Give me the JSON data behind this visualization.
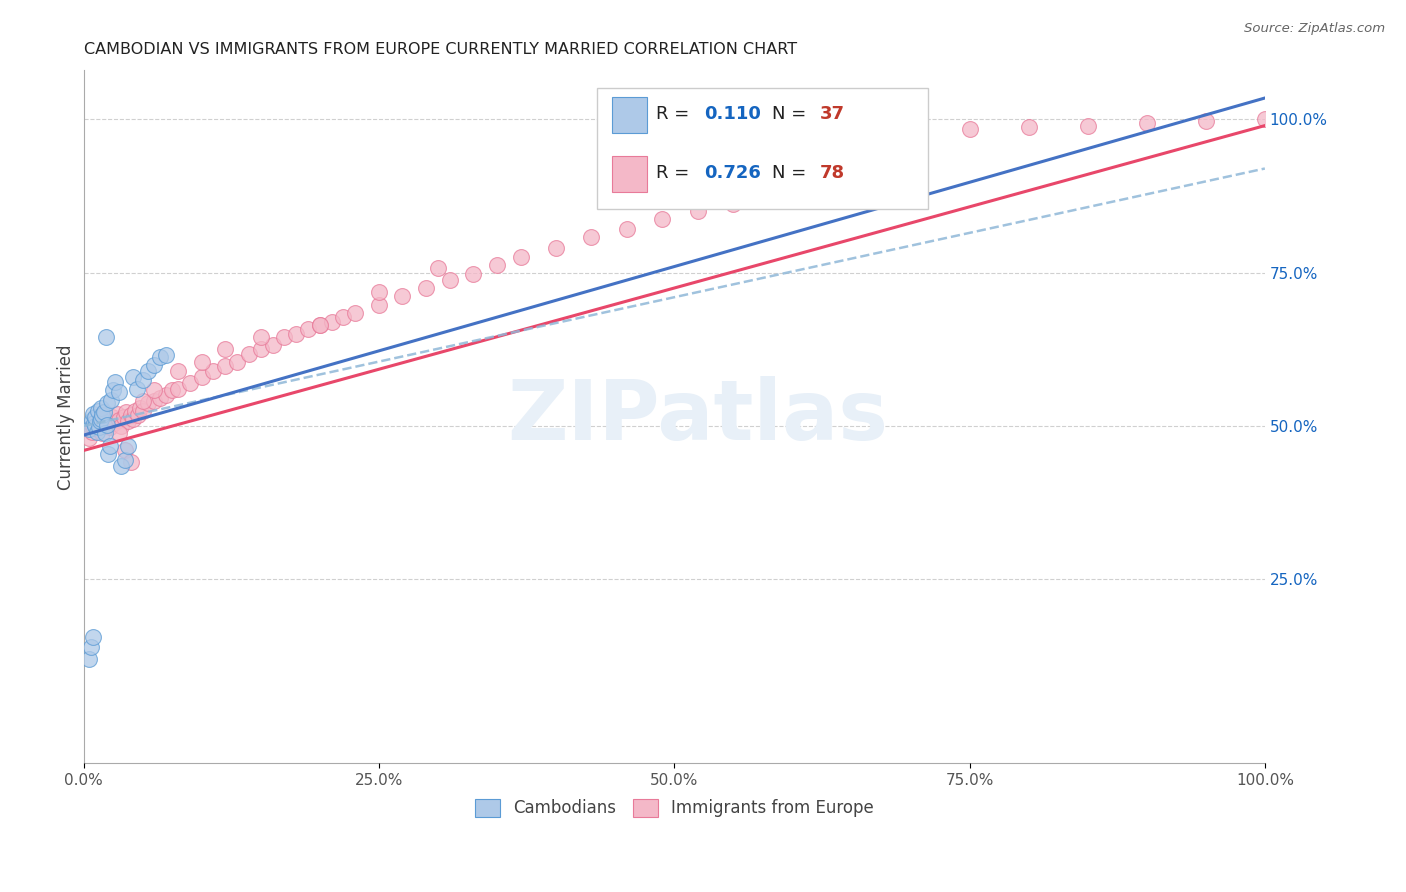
{
  "title": "CAMBODIAN VS IMMIGRANTS FROM EUROPE CURRENTLY MARRIED CORRELATION CHART",
  "source": "Source: ZipAtlas.com",
  "ylabel": "Currently Married",
  "right_yticks": [
    "100.0%",
    "75.0%",
    "50.0%",
    "25.0%"
  ],
  "right_ytick_vals": [
    1.0,
    0.75,
    0.5,
    0.25
  ],
  "legend_label1": "Cambodians",
  "legend_label2": "Immigrants from Europe",
  "watermark": "ZIPatlas",
  "blue_scatter_color": "#aec9e8",
  "blue_edge_color": "#5b9bd5",
  "pink_scatter_color": "#f4b8c8",
  "pink_edge_color": "#e87a99",
  "blue_line_color": "#4472c4",
  "pink_line_color": "#e8476a",
  "r_val_color": "#1565C0",
  "n_val_color": "#c0392b",
  "xlim": [
    0.0,
    1.0
  ],
  "ylim": [
    -0.05,
    1.08
  ],
  "cambodian_x": [
    0.005,
    0.007,
    0.008,
    0.009,
    0.01,
    0.01,
    0.011,
    0.012,
    0.013,
    0.014,
    0.015,
    0.015,
    0.016,
    0.017,
    0.018,
    0.019,
    0.02,
    0.02,
    0.021,
    0.022,
    0.023,
    0.025,
    0.027,
    0.03,
    0.032,
    0.035,
    0.038,
    0.042,
    0.045,
    0.05,
    0.055,
    0.06,
    0.065,
    0.07,
    0.005,
    0.006,
    0.008
  ],
  "cambodian_y": [
    0.495,
    0.51,
    0.52,
    0.505,
    0.5,
    0.515,
    0.49,
    0.525,
    0.498,
    0.508,
    0.512,
    0.53,
    0.518,
    0.522,
    0.488,
    0.645,
    0.502,
    0.538,
    0.455,
    0.468,
    0.542,
    0.558,
    0.572,
    0.555,
    0.435,
    0.445,
    0.468,
    0.58,
    0.56,
    0.575,
    0.59,
    0.6,
    0.612,
    0.615,
    0.12,
    0.14,
    0.155
  ],
  "europe_x": [
    0.005,
    0.007,
    0.008,
    0.01,
    0.012,
    0.014,
    0.016,
    0.018,
    0.02,
    0.022,
    0.024,
    0.026,
    0.028,
    0.03,
    0.032,
    0.034,
    0.036,
    0.038,
    0.04,
    0.042,
    0.044,
    0.046,
    0.048,
    0.05,
    0.055,
    0.06,
    0.065,
    0.07,
    0.075,
    0.08,
    0.09,
    0.1,
    0.11,
    0.12,
    0.13,
    0.14,
    0.15,
    0.16,
    0.17,
    0.18,
    0.19,
    0.2,
    0.21,
    0.22,
    0.23,
    0.25,
    0.27,
    0.29,
    0.31,
    0.33,
    0.35,
    0.37,
    0.4,
    0.43,
    0.46,
    0.49,
    0.52,
    0.55,
    0.03,
    0.035,
    0.04,
    0.05,
    0.06,
    0.08,
    0.1,
    0.12,
    0.15,
    0.2,
    0.25,
    0.3,
    0.6,
    0.7,
    0.75,
    0.8,
    0.85,
    0.9,
    0.95,
    1.0
  ],
  "europe_y": [
    0.48,
    0.49,
    0.5,
    0.505,
    0.495,
    0.51,
    0.488,
    0.5,
    0.51,
    0.498,
    0.515,
    0.505,
    0.52,
    0.51,
    0.5,
    0.515,
    0.522,
    0.508,
    0.518,
    0.512,
    0.525,
    0.518,
    0.53,
    0.525,
    0.538,
    0.54,
    0.545,
    0.55,
    0.558,
    0.56,
    0.57,
    0.58,
    0.59,
    0.598,
    0.605,
    0.618,
    0.625,
    0.632,
    0.645,
    0.65,
    0.658,
    0.665,
    0.67,
    0.678,
    0.685,
    0.698,
    0.712,
    0.725,
    0.738,
    0.748,
    0.762,
    0.775,
    0.79,
    0.808,
    0.822,
    0.838,
    0.85,
    0.862,
    0.488,
    0.46,
    0.442,
    0.54,
    0.558,
    0.59,
    0.605,
    0.625,
    0.645,
    0.665,
    0.718,
    0.758,
    0.958,
    0.975,
    0.985,
    0.988,
    0.99,
    0.995,
    0.998,
    1.0
  ]
}
